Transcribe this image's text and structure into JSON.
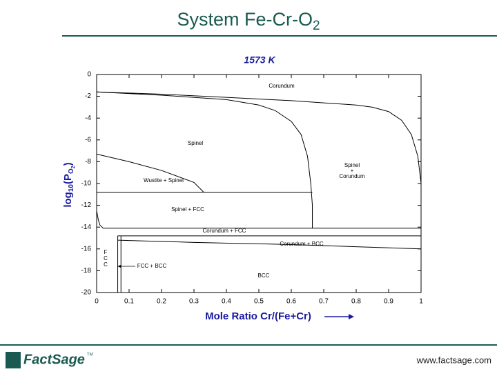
{
  "chart_data": {
    "type": "line",
    "title": "System Fe-Cr-O",
    "title_subscript": "2",
    "subtitle": "1573 K",
    "xlabel": "Mole Ratio Cr/(Fe+Cr)",
    "ylabel": {
      "base": "log",
      "base_sub": "10",
      "open": "(P",
      "p_sub": "O",
      "p_sub_sub": "2",
      "close": ")"
    },
    "xlim": [
      0,
      1
    ],
    "ylim": [
      -20,
      0
    ],
    "xticks": [
      0,
      0.1,
      0.2,
      0.3,
      0.4,
      0.5,
      0.6,
      0.7,
      0.8,
      0.9,
      1
    ],
    "yticks": [
      0,
      -2,
      -4,
      -6,
      -8,
      -10,
      -12,
      -14,
      -16,
      -18,
      -20
    ],
    "line_color": "#000000",
    "series": [
      {
        "x": [
          0,
          0.2,
          0.4,
          0.5,
          0.55,
          0.6,
          0.63,
          0.65,
          0.66,
          0.665,
          0.665
        ],
        "values": [
          -1.6,
          -1.9,
          -2.3,
          -2.8,
          -3.3,
          -4.3,
          -5.5,
          -7.5,
          -10,
          -12,
          -14.1
        ]
      },
      {
        "x": [
          0,
          0.2,
          0.4,
          0.6,
          0.7,
          0.8,
          0.85,
          0.9,
          0.94,
          0.97,
          0.99,
          1
        ],
        "values": [
          -1.6,
          -1.8,
          -2.1,
          -2.4,
          -2.6,
          -2.8,
          -3.0,
          -3.4,
          -4.2,
          -5.5,
          -7.5,
          -10
        ]
      },
      {
        "x": [
          0,
          0.1,
          0.2,
          0.3,
          0.33
        ],
        "values": [
          -7.3,
          -8.0,
          -8.8,
          -9.9,
          -10.8
        ]
      },
      {
        "x": [
          0,
          0.665
        ],
        "values": [
          -10.8,
          -10.8
        ]
      },
      {
        "x": [
          0,
          0.005,
          0.01,
          0.02
        ],
        "values": [
          -12.5,
          -13.3,
          -13.8,
          -14.1
        ]
      },
      {
        "x": [
          0.02,
          1
        ],
        "values": [
          -14.1,
          -14.1
        ]
      },
      {
        "x": [
          0.065,
          1
        ],
        "values": [
          -14.8,
          -14.8
        ]
      },
      {
        "x": [
          0.065,
          0.3,
          0.6,
          1
        ],
        "values": [
          -15.2,
          -15.4,
          -15.6,
          -16.0
        ]
      },
      {
        "x": [
          0.065,
          0.065
        ],
        "values": [
          -14.8,
          -20
        ]
      },
      {
        "x": [
          0.075,
          0.075
        ],
        "values": [
          -14.8,
          -20
        ]
      }
    ],
    "annotations": [
      "Corundum",
      "Spinel",
      "Spinel",
      "+",
      "Corundum",
      "Wustite + Spinel",
      "Spinel + FCC",
      "Corundum + FCC",
      "Corundum + BCC",
      "F",
      "C",
      "C",
      "FCC + BCC",
      "BCC"
    ]
  },
  "footer": {
    "logo": "FactSage",
    "trademark": "TM",
    "url": "www.factsage.com"
  }
}
